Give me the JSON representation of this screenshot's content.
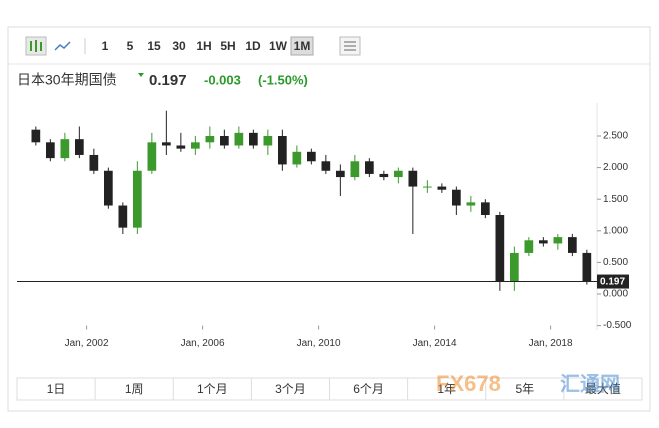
{
  "toolbar": {
    "intervals": [
      "1",
      "5",
      "15",
      "30",
      "1H",
      "5H",
      "1D",
      "1W",
      "1M"
    ],
    "active": 8
  },
  "header": {
    "name": "日本30年期国债",
    "change": "-0.003",
    "change_pct": "(-1.50%)"
  },
  "ranges": [
    "1日",
    "1周",
    "1个月",
    "3个月",
    "6个月",
    "1年",
    "5年",
    "最大值"
  ],
  "watermark": {
    "brand": "FX678",
    "site": "汇通网"
  },
  "chart_data": {
    "type": "candlestick",
    "last_price": 0.197,
    "up_color": "#3c9a2c",
    "down_color": "#222222",
    "x": [
      2000.25,
      2000.75,
      2001.25,
      2001.75,
      2002.25,
      2002.75,
      2003.25,
      2003.75,
      2004.25,
      2004.75,
      2005.25,
      2005.75,
      2006.25,
      2006.75,
      2007.25,
      2007.75,
      2008.25,
      2008.75,
      2009.25,
      2009.75,
      2010.25,
      2010.75,
      2011.25,
      2011.75,
      2012.25,
      2012.75,
      2013.25,
      2013.75,
      2014.25,
      2014.75,
      2015.25,
      2015.75,
      2016.25,
      2016.75,
      2017.25,
      2017.75,
      2018.25,
      2018.75,
      2019.25
    ],
    "open": [
      2.6,
      2.4,
      2.15,
      2.45,
      2.2,
      1.95,
      1.4,
      1.05,
      1.95,
      2.4,
      2.35,
      2.3,
      2.4,
      2.5,
      2.35,
      2.55,
      2.35,
      2.5,
      2.05,
      2.25,
      2.1,
      1.95,
      1.85,
      2.1,
      1.9,
      1.85,
      1.95,
      1.7,
      1.7,
      1.65,
      1.4,
      1.45,
      1.25,
      0.2,
      0.65,
      0.85,
      0.8,
      0.9,
      0.65
    ],
    "high": [
      2.65,
      2.45,
      2.55,
      2.65,
      2.3,
      2.0,
      1.45,
      2.1,
      2.55,
      2.9,
      2.55,
      2.5,
      2.65,
      2.6,
      2.65,
      2.6,
      2.6,
      2.6,
      2.35,
      2.3,
      2.2,
      2.05,
      2.2,
      2.15,
      1.95,
      2.0,
      2.0,
      1.8,
      1.75,
      1.7,
      1.55,
      1.5,
      1.3,
      0.75,
      0.9,
      0.9,
      0.95,
      0.95,
      0.7
    ],
    "low": [
      2.35,
      2.1,
      2.1,
      2.15,
      1.9,
      1.35,
      0.95,
      0.95,
      1.9,
      2.2,
      2.25,
      2.2,
      2.3,
      2.3,
      2.3,
      2.3,
      2.2,
      1.95,
      2.0,
      2.05,
      1.9,
      1.55,
      1.8,
      1.85,
      1.8,
      1.75,
      0.95,
      1.6,
      1.6,
      1.25,
      1.3,
      1.2,
      0.05,
      0.05,
      0.6,
      0.75,
      0.7,
      0.6,
      0.15
    ],
    "close": [
      2.4,
      2.15,
      2.45,
      2.2,
      1.95,
      1.4,
      1.05,
      1.95,
      2.4,
      2.35,
      2.3,
      2.4,
      2.5,
      2.35,
      2.55,
      2.35,
      2.5,
      2.05,
      2.25,
      2.1,
      1.95,
      1.85,
      2.1,
      1.9,
      1.85,
      1.95,
      1.7,
      1.7,
      1.65,
      1.4,
      1.45,
      1.25,
      0.2,
      0.65,
      0.85,
      0.8,
      0.9,
      0.65,
      0.2
    ],
    "xlim": [
      1999.6,
      2019.6
    ],
    "xticks": [
      {
        "value": 2002,
        "label": "Jan, 2002"
      },
      {
        "value": 2006,
        "label": "Jan, 2006"
      },
      {
        "value": 2010,
        "label": "Jan, 2010"
      },
      {
        "value": 2014,
        "label": "Jan, 2014"
      },
      {
        "value": 2018,
        "label": "Jan, 2018"
      }
    ],
    "ylim": [
      -0.5,
      3.0
    ],
    "yticks": [
      {
        "value": 2.5,
        "label": "2.500"
      },
      {
        "value": 2.0,
        "label": "2.000"
      },
      {
        "value": 1.5,
        "label": "1.500"
      },
      {
        "value": 1.0,
        "label": "1.000"
      },
      {
        "value": 0.5,
        "label": "0.500"
      },
      {
        "value": 0,
        "label": "0.000"
      },
      {
        "value": -0.5,
        "label": "-0.500"
      }
    ]
  }
}
